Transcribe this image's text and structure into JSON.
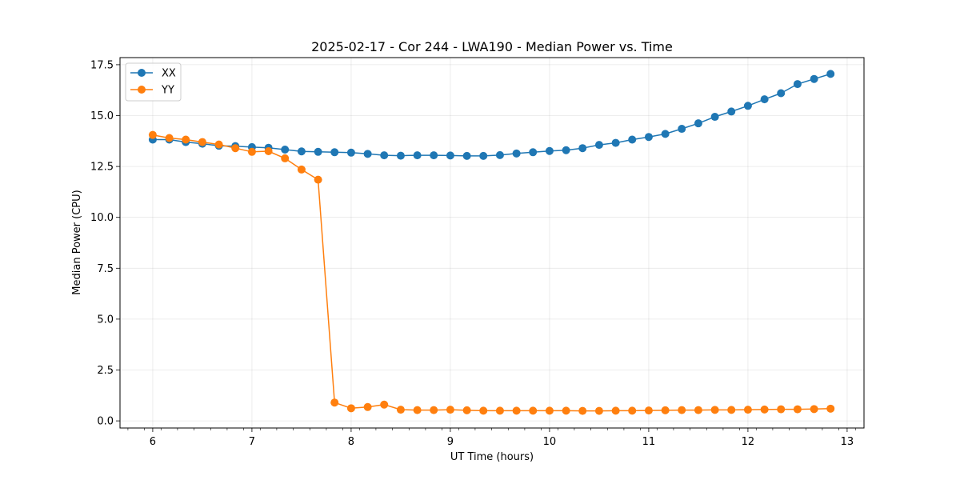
{
  "chart_data": {
    "type": "line",
    "title": "2025-02-17 - Cor 244 - LWA190 - Median Power vs. Time",
    "xlabel": "UT Time (hours)",
    "ylabel": "Median Power (CPU)",
    "xlim": [
      5.67,
      13.17
    ],
    "ylim": [
      -0.35,
      17.85
    ],
    "xticks": [
      6,
      7,
      8,
      9,
      10,
      11,
      12,
      13
    ],
    "yticks": [
      0.0,
      2.5,
      5.0,
      7.5,
      10.0,
      12.5,
      15.0,
      17.5
    ],
    "ytick_labels": [
      "0.0",
      "2.5",
      "5.0",
      "7.5",
      "10.0",
      "12.5",
      "15.0",
      "17.5"
    ],
    "grid": true,
    "legend_position": "top-left",
    "series": [
      {
        "name": "XX",
        "color": "#1f77b4",
        "x": [
          6.0,
          6.167,
          6.333,
          6.5,
          6.667,
          6.833,
          7.0,
          7.167,
          7.333,
          7.5,
          7.667,
          7.833,
          8.0,
          8.167,
          8.333,
          8.5,
          8.667,
          8.833,
          9.0,
          9.167,
          9.333,
          9.5,
          9.667,
          9.833,
          10.0,
          10.167,
          10.333,
          10.5,
          10.667,
          10.833,
          11.0,
          11.167,
          11.333,
          11.5,
          11.667,
          11.833,
          12.0,
          12.167,
          12.333,
          12.5,
          12.667,
          12.833
        ],
        "values": [
          13.82,
          13.82,
          13.7,
          13.62,
          13.52,
          13.5,
          13.45,
          13.42,
          13.33,
          13.24,
          13.22,
          13.2,
          13.18,
          13.12,
          13.05,
          13.03,
          13.05,
          13.05,
          13.04,
          13.02,
          13.02,
          13.06,
          13.14,
          13.2,
          13.26,
          13.3,
          13.4,
          13.56,
          13.66,
          13.82,
          13.95,
          14.1,
          14.35,
          14.62,
          14.94,
          15.2,
          15.48,
          15.8,
          16.1,
          16.55,
          16.8,
          17.05
        ]
      },
      {
        "name": "YY",
        "color": "#ff7f0e",
        "x": [
          6.0,
          6.167,
          6.333,
          6.5,
          6.667,
          6.833,
          7.0,
          7.167,
          7.333,
          7.5,
          7.667,
          7.833,
          8.0,
          8.167,
          8.333,
          8.5,
          8.667,
          8.833,
          9.0,
          9.167,
          9.333,
          9.5,
          9.667,
          9.833,
          10.0,
          10.167,
          10.333,
          10.5,
          10.667,
          10.833,
          11.0,
          11.167,
          11.333,
          11.5,
          11.667,
          11.833,
          12.0,
          12.167,
          12.333,
          12.5,
          12.667,
          12.833
        ],
        "values": [
          14.05,
          13.9,
          13.82,
          13.7,
          13.58,
          13.4,
          13.22,
          13.25,
          12.9,
          12.35,
          11.85,
          0.9,
          0.62,
          0.68,
          0.8,
          0.55,
          0.53,
          0.53,
          0.55,
          0.52,
          0.5,
          0.5,
          0.5,
          0.5,
          0.5,
          0.5,
          0.49,
          0.49,
          0.5,
          0.5,
          0.51,
          0.52,
          0.53,
          0.53,
          0.54,
          0.54,
          0.55,
          0.56,
          0.57,
          0.57,
          0.58,
          0.6
        ]
      }
    ]
  }
}
